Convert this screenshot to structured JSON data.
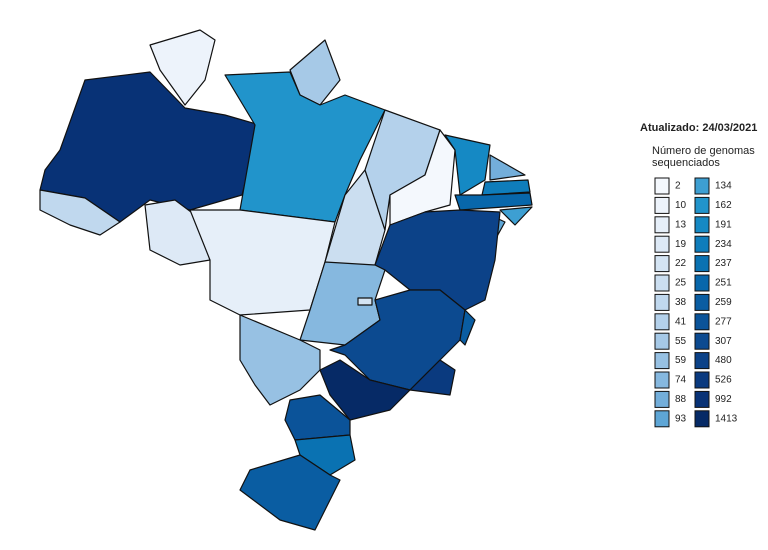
{
  "chart_data": {
    "type": "choropleth",
    "updated": "Atualizado: 24/03/2021",
    "legend_title": "Número de genomas sequenciados",
    "legend": [
      {
        "value": 2,
        "color": "#f4f8fd"
      },
      {
        "value": 10,
        "color": "#edf3fb"
      },
      {
        "value": 13,
        "color": "#e6eff9"
      },
      {
        "value": 19,
        "color": "#dde9f6"
      },
      {
        "value": 22,
        "color": "#d4e4f3"
      },
      {
        "value": 25,
        "color": "#cbdef0"
      },
      {
        "value": 38,
        "color": "#c0d8ee"
      },
      {
        "value": 41,
        "color": "#b4d1eb"
      },
      {
        "value": 55,
        "color": "#a6c9e7"
      },
      {
        "value": 59,
        "color": "#97c1e3"
      },
      {
        "value": 74,
        "color": "#86b8df"
      },
      {
        "value": 88,
        "color": "#73aeda"
      },
      {
        "value": 93,
        "color": "#5ea6d6"
      },
      {
        "value": 134,
        "color": "#3d9fd2"
      },
      {
        "value": 162,
        "color": "#2194cb"
      },
      {
        "value": 191,
        "color": "#1589c4"
      },
      {
        "value": 234,
        "color": "#0f7dbb"
      },
      {
        "value": 237,
        "color": "#0a72b2"
      },
      {
        "value": 251,
        "color": "#0867ab"
      },
      {
        "value": 259,
        "color": "#0a5da2"
      },
      {
        "value": 277,
        "color": "#0b5399"
      },
      {
        "value": 307,
        "color": "#0c4a90"
      },
      {
        "value": 480,
        "color": "#0c4288"
      },
      {
        "value": 526,
        "color": "#0a3a7f"
      },
      {
        "value": 992,
        "color": "#083276"
      },
      {
        "value": 1413,
        "color": "#062a66"
      }
    ],
    "regions": [
      {
        "value": 992
      },
      {
        "value": 10
      },
      {
        "value": 55
      },
      {
        "value": 162
      },
      {
        "value": 38
      },
      {
        "value": 19
      },
      {
        "value": 13
      },
      {
        "value": 25
      },
      {
        "value": 41
      },
      {
        "value": 2
      },
      {
        "value": 191
      },
      {
        "value": 88
      },
      {
        "value": 234
      },
      {
        "value": 251
      },
      {
        "value": 134
      },
      {
        "value": 93
      },
      {
        "value": 480
      },
      {
        "value": 74
      },
      {
        "value": 22
      },
      {
        "value": 59
      },
      {
        "value": 307
      },
      {
        "value": 259
      },
      {
        "value": 526
      },
      {
        "value": 1413
      },
      {
        "value": 277
      },
      {
        "value": 237
      },
      {
        "value": 259
      }
    ]
  }
}
